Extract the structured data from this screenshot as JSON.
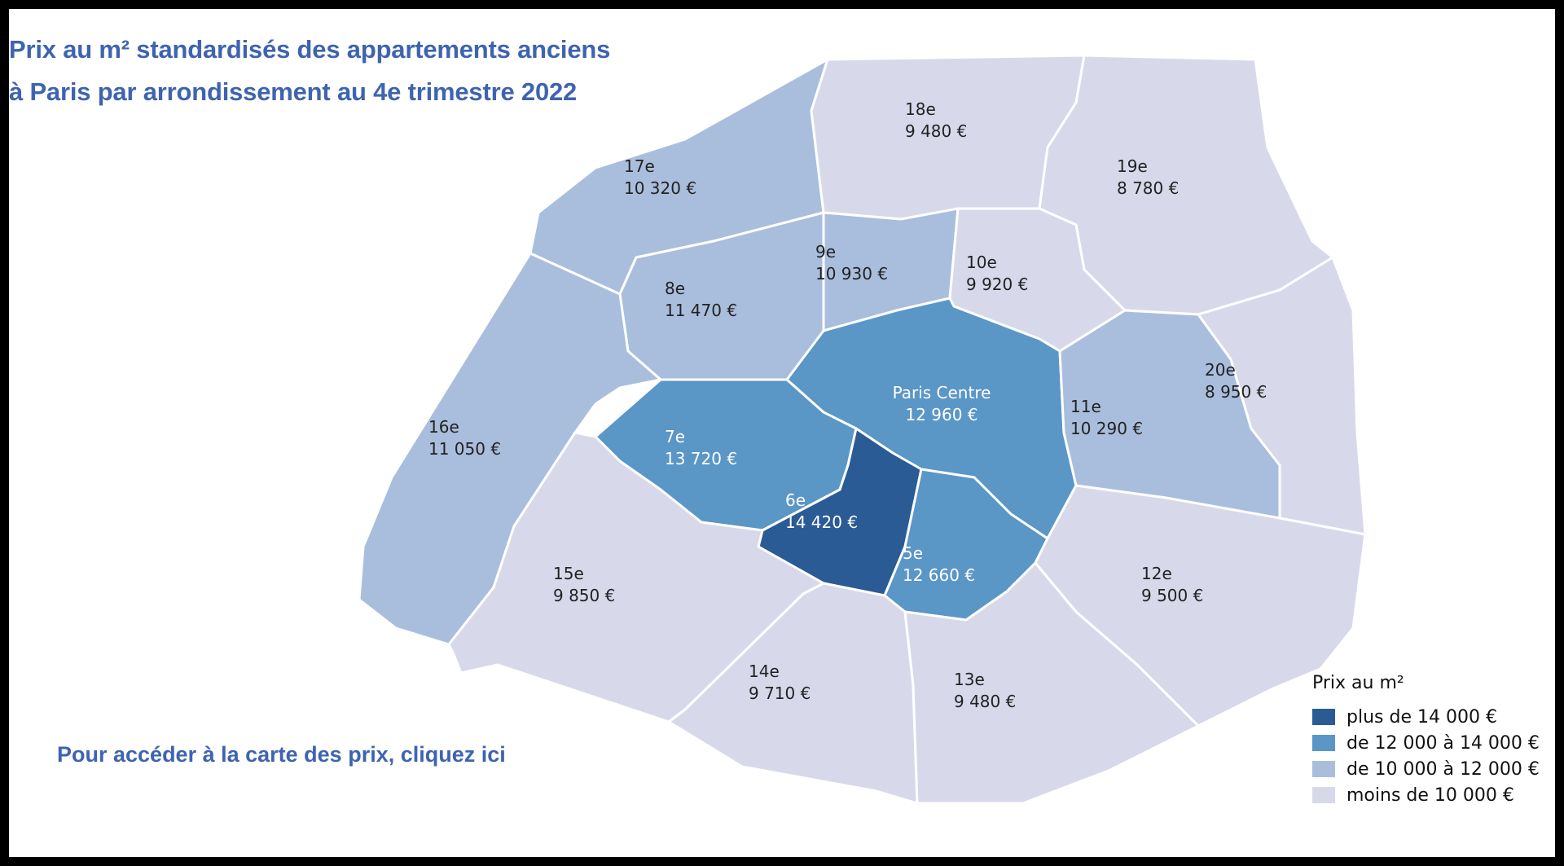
{
  "title": {
    "line1": "Prix au m² standardisés des appartements anciens",
    "line2": "à Paris par arrondissement au 4e trimestre 2022"
  },
  "link": {
    "label": "Pour accéder à la carte des prix, cliquez ici"
  },
  "colors": {
    "plus_14000": "#2a5b94",
    "from_12000_to_14000": "#5a96c6",
    "from_10000_to_12000": "#a9bedd",
    "below_10000": "#d7d9eb"
  },
  "districts": [
    {
      "id": "17e",
      "name": "17e",
      "price": "10 320 €",
      "price_value": 10320,
      "class": "from_10000_to_12000"
    },
    {
      "id": "18e",
      "name": "18e",
      "price": "9 480 €",
      "price_value": 9480,
      "class": "below_10000"
    },
    {
      "id": "19e",
      "name": "19e",
      "price": "8 780 €",
      "price_value": 8780,
      "class": "below_10000"
    },
    {
      "id": "8e",
      "name": "8e",
      "price": "11 470 €",
      "price_value": 11470,
      "class": "from_10000_to_12000"
    },
    {
      "id": "9e",
      "name": "9e",
      "price": "10 930 €",
      "price_value": 10930,
      "class": "from_10000_to_12000"
    },
    {
      "id": "10e",
      "name": "10e",
      "price": "9 920 €",
      "price_value": 9920,
      "class": "below_10000"
    },
    {
      "id": "16e",
      "name": "16e",
      "price": "11 050 €",
      "price_value": 11050,
      "class": "from_10000_to_12000"
    },
    {
      "id": "paris-centre",
      "name": "Paris Centre",
      "price": "12 960 €",
      "price_value": 12960,
      "class": "from_12000_to_14000"
    },
    {
      "id": "7e",
      "name": "7e",
      "price": "13 720 €",
      "price_value": 13720,
      "class": "from_12000_to_14000"
    },
    {
      "id": "11e",
      "name": "11e",
      "price": "10 290 €",
      "price_value": 10290,
      "class": "from_10000_to_12000"
    },
    {
      "id": "20e",
      "name": "20e",
      "price": "8 950 €",
      "price_value": 8950,
      "class": "below_10000"
    },
    {
      "id": "6e",
      "name": "6e",
      "price": "14 420 €",
      "price_value": 14420,
      "class": "plus_14000"
    },
    {
      "id": "5e",
      "name": "5e",
      "price": "12 660 €",
      "price_value": 12660,
      "class": "from_12000_to_14000"
    },
    {
      "id": "15e",
      "name": "15e",
      "price": "9 850 €",
      "price_value": 9850,
      "class": "below_10000"
    },
    {
      "id": "12e",
      "name": "12e",
      "price": "9 500 €",
      "price_value": 9500,
      "class": "below_10000"
    },
    {
      "id": "14e",
      "name": "14e",
      "price": "9 710 €",
      "price_value": 9710,
      "class": "below_10000"
    },
    {
      "id": "13e",
      "name": "13e",
      "price": "9 480 €",
      "price_value": 9480,
      "class": "below_10000"
    }
  ],
  "legend": {
    "title": "Prix au m²",
    "items": [
      {
        "label": "plus de 14 000 €",
        "class": "plus_14000"
      },
      {
        "label": "de 12 000 à 14 000 €",
        "class": "from_12000_to_14000"
      },
      {
        "label": "de 10 000 à 12 000 €",
        "class": "from_10000_to_12000"
      },
      {
        "label": "moins de 10 000 €",
        "class": "below_10000"
      }
    ]
  }
}
